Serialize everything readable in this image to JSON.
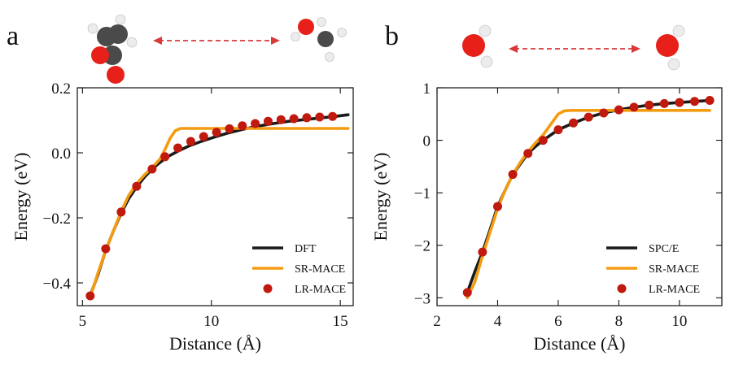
{
  "figure": {
    "panels": [
      "a",
      "b"
    ]
  },
  "colors": {
    "reference": "#1a1a1a",
    "sr_mace": "#f39c12",
    "lr_mace": "#c0190d",
    "arrow": "#d83a3a",
    "carbon": "#4a4a4a",
    "oxygen": "#e8201a",
    "hydrogen": "#f0f0f0"
  },
  "chart_data": [
    {
      "type": "line",
      "panel": "a",
      "xlabel": "Distance (Å)",
      "ylabel": "Energy (eV)",
      "xlim": [
        4.8,
        15.5
      ],
      "ylim": [
        -0.47,
        0.2
      ],
      "xticks": [
        5,
        10,
        15
      ],
      "xtick_labels": [
        "5",
        "10",
        "15"
      ],
      "yticks": [
        0.2,
        0.0,
        -0.2,
        -0.4
      ],
      "ytick_labels": [
        "0.2",
        "0.0",
        "−0.2",
        "−0.4"
      ],
      "legend_position": "lower-right",
      "series": [
        {
          "name": "DFT",
          "kind": "line",
          "x": [
            5.3,
            5.6,
            5.9,
            6.2,
            6.5,
            6.8,
            7.1,
            7.4,
            7.7,
            8.0,
            8.3,
            8.7,
            9.1,
            9.6,
            10.1,
            10.6,
            11.2,
            11.8,
            12.4,
            13.0,
            13.6,
            14.2,
            14.8,
            15.3
          ],
          "y": [
            -0.44,
            -0.375,
            -0.3,
            -0.24,
            -0.185,
            -0.14,
            -0.105,
            -0.075,
            -0.05,
            -0.03,
            -0.012,
            0.005,
            0.02,
            0.035,
            0.048,
            0.06,
            0.072,
            0.082,
            0.09,
            0.097,
            0.102,
            0.107,
            0.112,
            0.117
          ]
        },
        {
          "name": "SR-MACE",
          "kind": "line",
          "x": [
            5.3,
            5.6,
            5.9,
            6.2,
            6.5,
            6.8,
            7.1,
            7.4,
            7.7,
            8.0,
            8.2,
            8.4,
            8.6,
            8.8,
            9.0,
            9.5,
            10.0,
            11.0,
            12.0,
            13.0,
            14.0,
            15.3
          ],
          "y": [
            -0.445,
            -0.37,
            -0.3,
            -0.24,
            -0.18,
            -0.13,
            -0.095,
            -0.068,
            -0.045,
            -0.02,
            0.01,
            0.045,
            0.068,
            0.075,
            0.075,
            0.075,
            0.075,
            0.075,
            0.075,
            0.075,
            0.075,
            0.075
          ]
        },
        {
          "name": "LR-MACE",
          "kind": "scatter",
          "x": [
            5.3,
            5.9,
            6.5,
            7.1,
            7.7,
            8.2,
            8.7,
            9.2,
            9.7,
            10.2,
            10.7,
            11.2,
            11.7,
            12.2,
            12.7,
            13.2,
            13.7,
            14.2,
            14.7
          ],
          "y": [
            -0.44,
            -0.295,
            -0.182,
            -0.103,
            -0.05,
            -0.012,
            0.015,
            0.035,
            0.05,
            0.063,
            0.074,
            0.083,
            0.09,
            0.097,
            0.102,
            0.105,
            0.108,
            0.11,
            0.112
          ]
        }
      ]
    },
    {
      "type": "line",
      "panel": "b",
      "xlabel": "Distance (Å)",
      "ylabel": "Energy (eV)",
      "xlim": [
        2.0,
        11.4
      ],
      "ylim": [
        -3.15,
        1.0
      ],
      "xticks": [
        2,
        4,
        6,
        8,
        10
      ],
      "xtick_labels": [
        "2",
        "4",
        "6",
        "8",
        "10"
      ],
      "yticks": [
        1,
        0,
        -1,
        -2,
        -3
      ],
      "ytick_labels": [
        "1",
        "0",
        "−1",
        "−2",
        "−3"
      ],
      "legend_position": "lower-right",
      "series": [
        {
          "name": "SPC/E",
          "kind": "line",
          "x": [
            3.0,
            3.25,
            3.5,
            3.75,
            4.0,
            4.25,
            4.5,
            4.75,
            5.0,
            5.25,
            5.5,
            5.75,
            6.0,
            6.5,
            7.0,
            7.5,
            8.0,
            8.5,
            9.0,
            9.5,
            10.0,
            10.5,
            11.0
          ],
          "y": [
            -2.9,
            -2.5,
            -2.13,
            -1.7,
            -1.26,
            -0.95,
            -0.65,
            -0.45,
            -0.25,
            -0.12,
            0.0,
            0.1,
            0.2,
            0.33,
            0.44,
            0.52,
            0.58,
            0.63,
            0.67,
            0.7,
            0.72,
            0.74,
            0.76
          ]
        },
        {
          "name": "SR-MACE",
          "kind": "line",
          "x": [
            3.0,
            3.25,
            3.5,
            3.75,
            4.0,
            4.25,
            4.5,
            4.75,
            5.0,
            5.25,
            5.5,
            5.75,
            6.0,
            6.2,
            6.4,
            6.6,
            7.0,
            8.0,
            9.0,
            10.0,
            11.0
          ],
          "y": [
            -3.0,
            -2.7,
            -2.2,
            -1.75,
            -1.3,
            -0.95,
            -0.65,
            -0.42,
            -0.22,
            -0.05,
            0.1,
            0.3,
            0.5,
            0.56,
            0.57,
            0.57,
            0.57,
            0.57,
            0.57,
            0.57,
            0.57
          ]
        },
        {
          "name": "LR-MACE",
          "kind": "scatter",
          "x": [
            3.0,
            3.5,
            4.0,
            4.5,
            5.0,
            5.5,
            6.0,
            6.5,
            7.0,
            7.5,
            8.0,
            8.5,
            9.0,
            9.5,
            10.0,
            10.5,
            11.0
          ],
          "y": [
            -2.9,
            -2.13,
            -1.26,
            -0.65,
            -0.25,
            0.0,
            0.2,
            0.33,
            0.44,
            0.52,
            0.58,
            0.63,
            0.67,
            0.7,
            0.72,
            0.74,
            0.76
          ]
        }
      ]
    }
  ]
}
